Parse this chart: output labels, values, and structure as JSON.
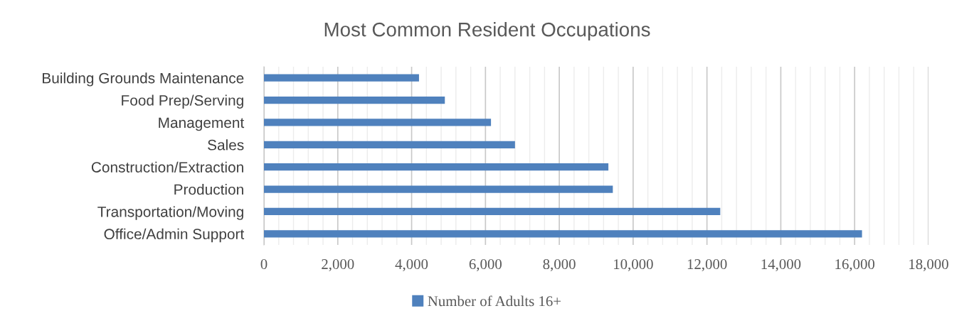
{
  "chart_data": {
    "type": "bar",
    "orientation": "horizontal",
    "title": "Most Common Resident Occupations",
    "categories": [
      "Building Grounds Maintenance",
      "Food Prep/Serving",
      "Management",
      "Sales",
      "Construction/Extraction",
      "Production",
      "Transportation/Moving",
      "Office/Admin Support"
    ],
    "series": [
      {
        "name": "Number of Adults 16+",
        "color": "#4f81bd",
        "values": [
          4200,
          4900,
          6150,
          6800,
          9330,
          9450,
          12360,
          16200
        ]
      }
    ],
    "xlim": [
      0,
      18000
    ],
    "xticks": [
      {
        "value": 0,
        "label": "0"
      },
      {
        "value": 2000,
        "label": "2,000"
      },
      {
        "value": 4000,
        "label": "4,000"
      },
      {
        "value": 6000,
        "label": "6,000"
      },
      {
        "value": 8000,
        "label": "8,000"
      },
      {
        "value": 10000,
        "label": "10,000"
      },
      {
        "value": 12000,
        "label": "12,000"
      },
      {
        "value": 14000,
        "label": "14,000"
      },
      {
        "value": 16000,
        "label": "16,000"
      },
      {
        "value": 18000,
        "label": "18,000"
      }
    ],
    "grid": "x",
    "legend": "bottom"
  }
}
